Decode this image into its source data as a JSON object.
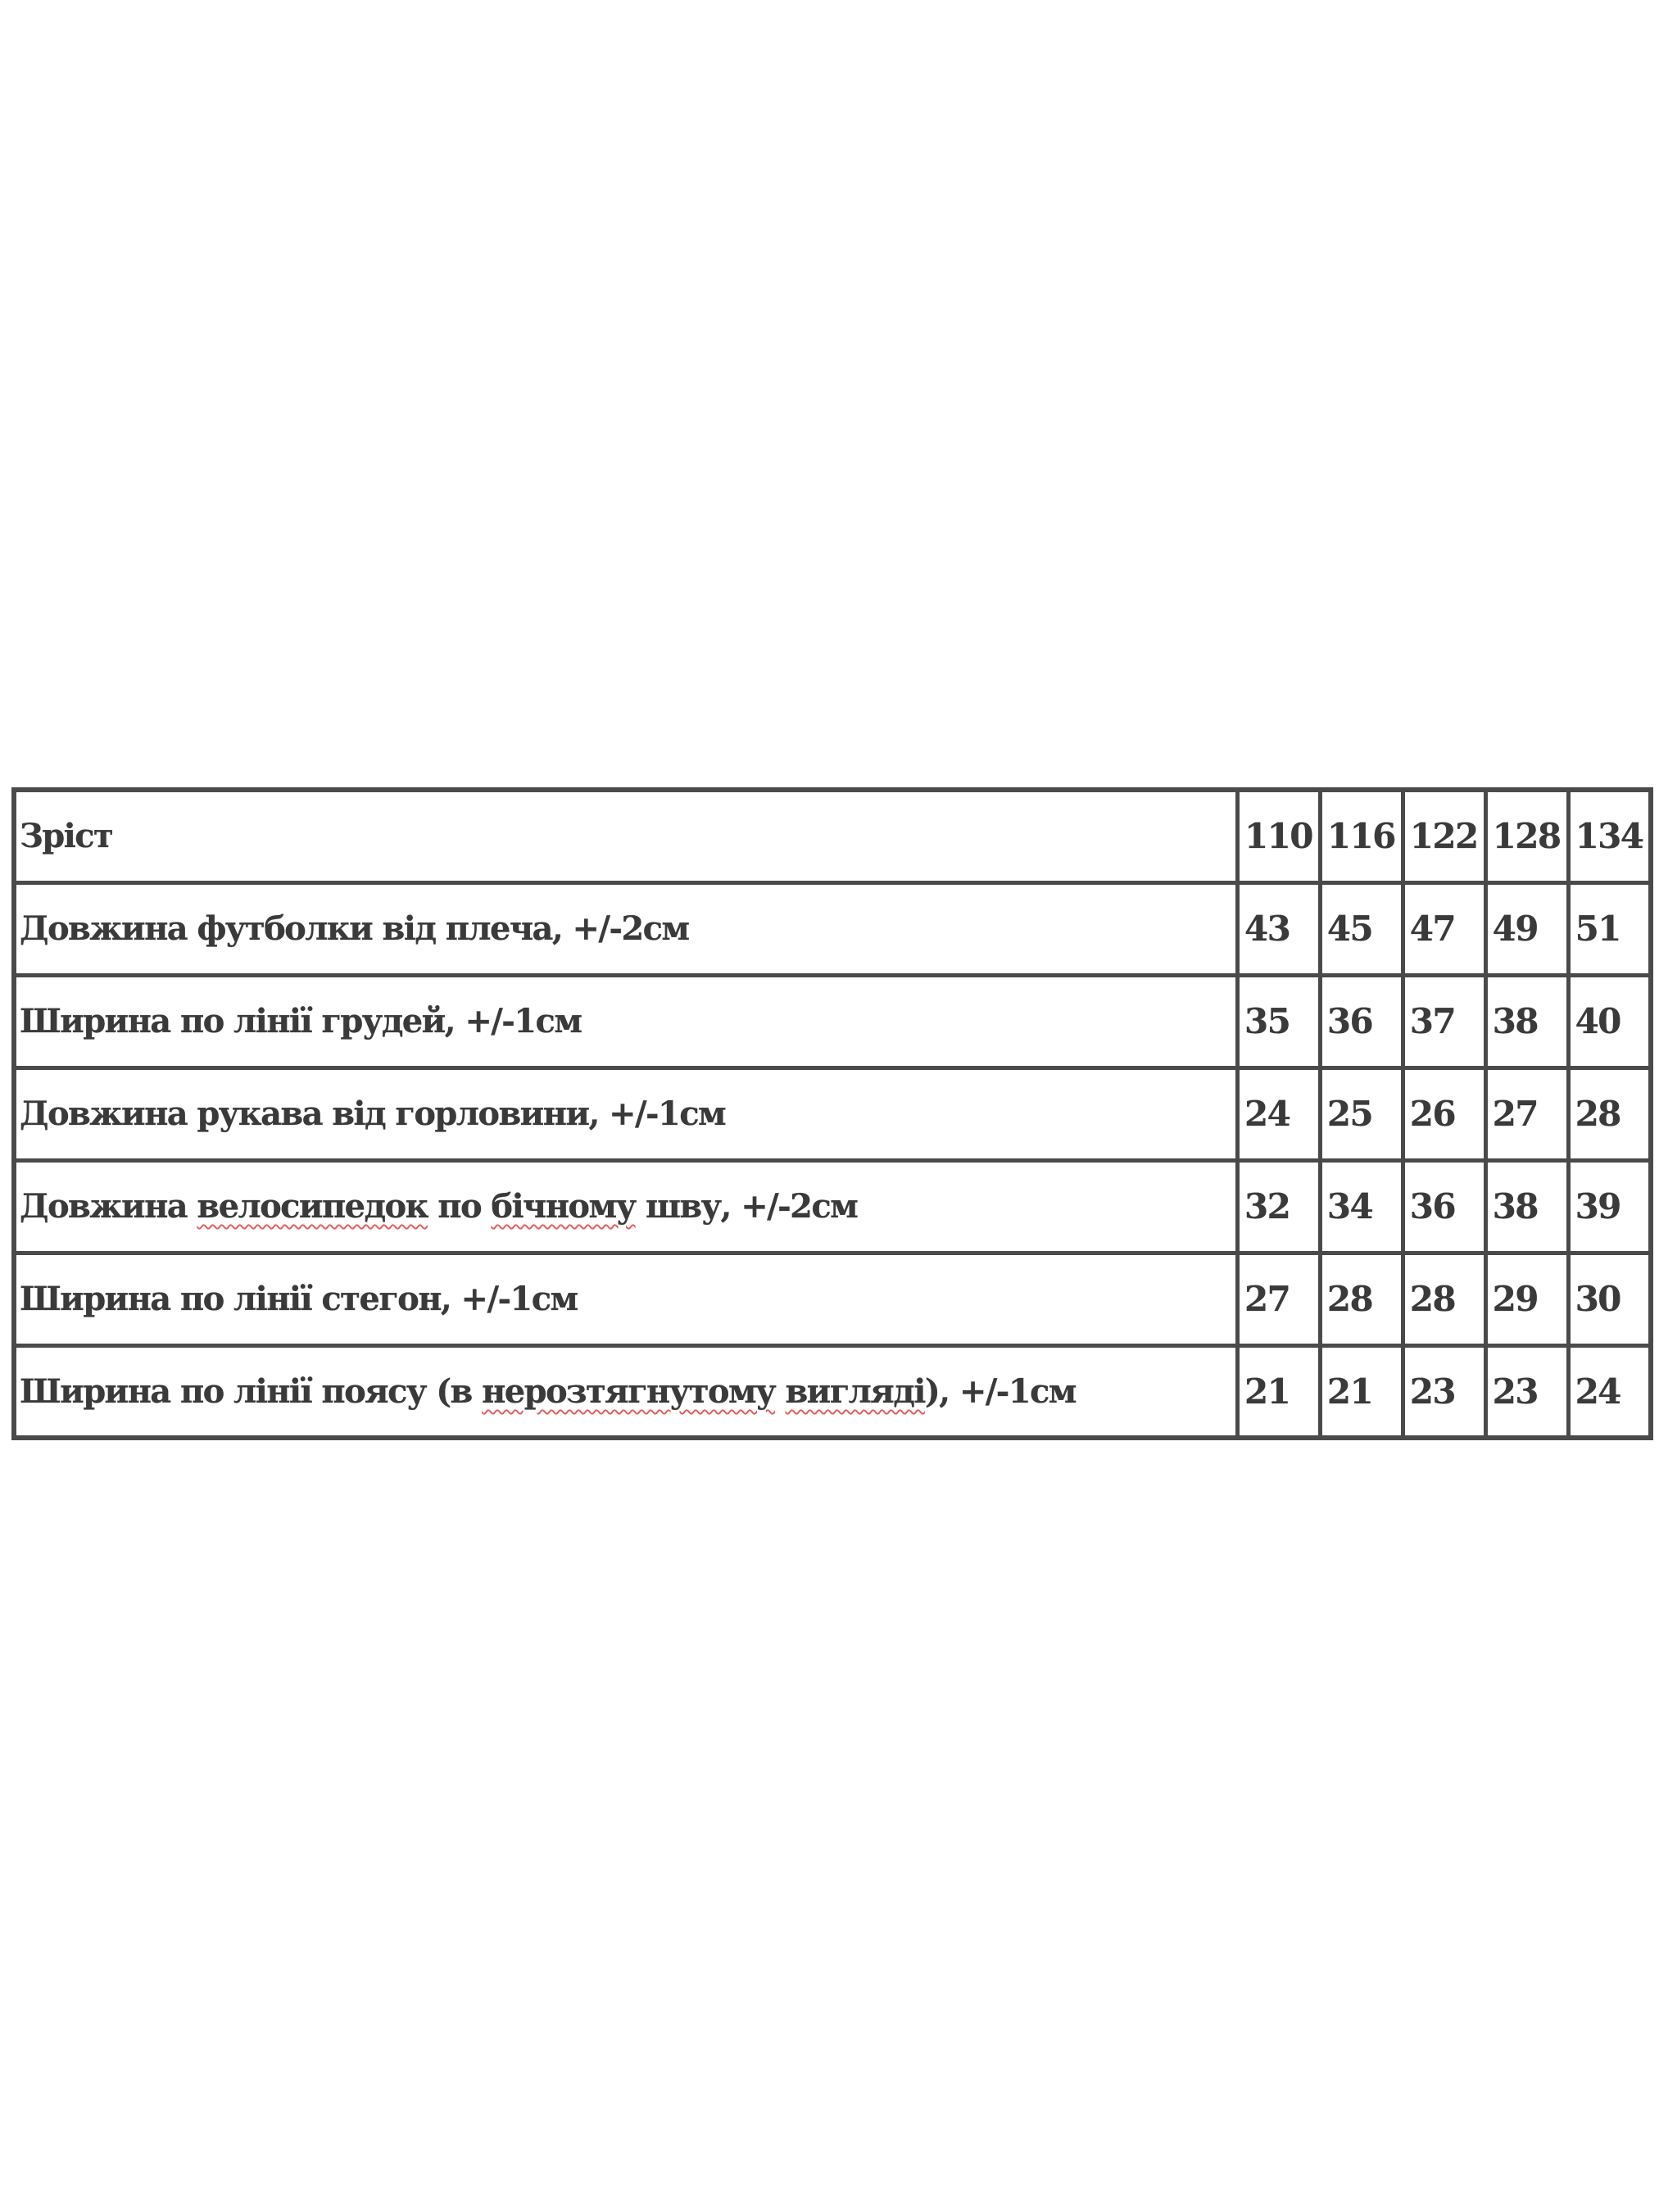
{
  "table": {
    "header": {
      "label": "Зріст",
      "sizes": [
        "110",
        "116",
        "122",
        "128",
        "134"
      ]
    },
    "rows": [
      {
        "label": "Довжина футболки від плеча, +/-2см",
        "values": [
          "43",
          "45",
          "47",
          "49",
          "51"
        ]
      },
      {
        "label": "Ширина по лінії грудей, +/-1см",
        "values": [
          "35",
          "36",
          "37",
          "38",
          "40"
        ]
      },
      {
        "label": "Довжина рукава від горловини, +/-1см",
        "values": [
          "24",
          "25",
          "26",
          "27",
          "28"
        ]
      },
      {
        "label": "Довжина велосипедок по бічному шву, +/-2см",
        "values": [
          "32",
          "34",
          "36",
          "38",
          "39"
        ]
      },
      {
        "label": "Ширина по лінії стегон, +/-1см",
        "values": [
          "27",
          "28",
          "28",
          "29",
          "30"
        ]
      },
      {
        "label": "Ширина по лінії поясу (в нерозтягнутому вигляді), +/-1см",
        "values": [
          "21",
          "21",
          "23",
          "23",
          "24"
        ]
      }
    ],
    "spellcheck_flagged_words": [
      "велосипедок",
      "бічному",
      "нерозтягнутому",
      "вигляді"
    ],
    "spellcheck_color": "#e06060"
  }
}
